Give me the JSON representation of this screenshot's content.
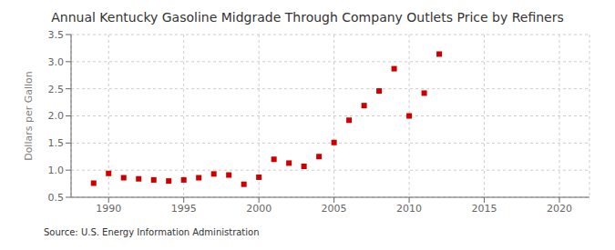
{
  "chart_data": {
    "type": "scatter",
    "title": "Annual Kentucky Gasoline Midgrade Through Company Outlets Price by Refiners",
    "y_label": "Dollars per Gallon",
    "annotations": [
      "Source: U.S. Energy Information Administration"
    ],
    "x": [
      1989,
      1990,
      1991,
      1992,
      1993,
      1994,
      1995,
      1996,
      1997,
      1998,
      1999,
      2000,
      2001,
      2002,
      2003,
      2004,
      2005,
      2006,
      2007,
      2008,
      2009,
      2010,
      2011,
      2012
    ],
    "values": [
      0.76,
      0.94,
      0.86,
      0.84,
      0.82,
      0.8,
      0.82,
      0.86,
      0.93,
      0.91,
      0.74,
      0.87,
      1.2,
      1.13,
      1.07,
      1.25,
      1.51,
      1.92,
      2.19,
      2.46,
      2.87,
      2.0,
      2.42,
      3.14
    ],
    "color": "#cc0000",
    "marker": "square",
    "xlim": [
      1987.5,
      2022
    ],
    "ylim": [
      0.5,
      3.5
    ],
    "xticks": [
      1990,
      1995,
      2000,
      2005,
      2010,
      2015,
      2020
    ],
    "yticks": [
      0.5,
      {
        "value": 1.0,
        "label": "1.0"
      },
      1.5,
      {
        "value": 2.0,
        "label": "2.0"
      },
      2.5,
      {
        "value": 3.0,
        "label": "3.0"
      },
      3.5
    ],
    "grid": true
  }
}
